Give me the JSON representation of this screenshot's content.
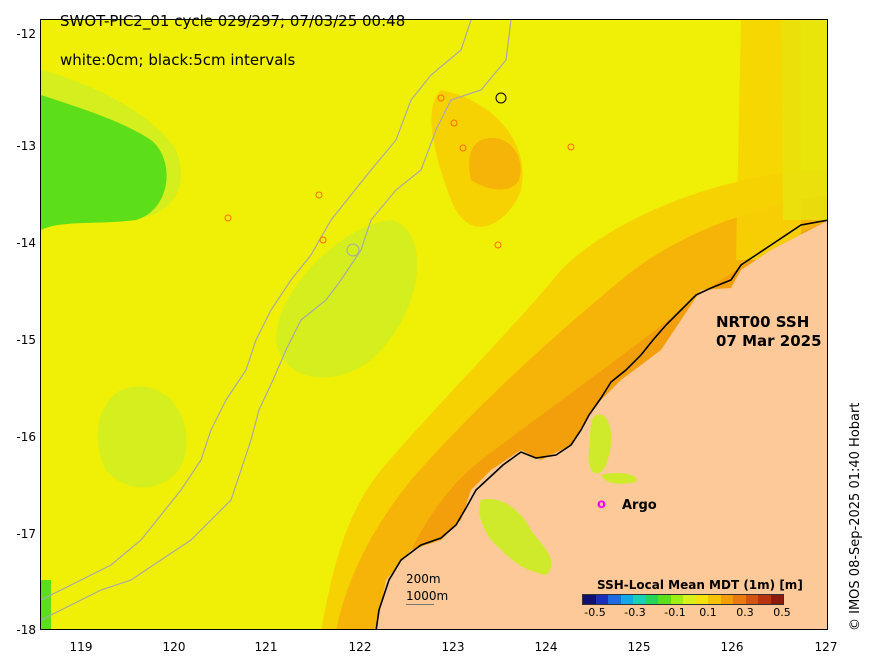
{
  "map": {
    "title_line1": "SWOT-PIC2_01 cycle 029/297; 07/03/25 00:48",
    "title_line2": "white:0cm; black:5cm intervals",
    "product_line1": "NRT00 SSH",
    "product_line2": "07 Mar 2025",
    "argo_marker": "o",
    "argo_label": "Argo",
    "scale_label_1": "200m",
    "scale_label_2": "1000m",
    "credit": "© IMOS 08-Sep-2025 01:40 Hobart",
    "lon_range": [
      118.6,
      127
    ],
    "lat_range": [
      -18,
      -11.75
    ],
    "lat_ticks": [
      "-12",
      "-13",
      "-14",
      "-15",
      "-16",
      "-17",
      "-18"
    ],
    "lon_ticks": [
      "119",
      "120",
      "121",
      "122",
      "123",
      "124",
      "125",
      "126",
      "127"
    ],
    "colors": {
      "land": "#fdc998",
      "ssh_0_05": "#d5ee1d",
      "ssh_0_10": "#f0ef06",
      "ssh_0_15": "#f7d202",
      "ssh_0_20": "#f5b407",
      "ssh_0_25": "#f29f0b",
      "ssh_low": "#7ff21c",
      "ssh_lowest": "#5cdf18",
      "bathymetry": "#a9a9a9",
      "argo": "#ff00ff"
    }
  },
  "colorbar": {
    "title": "SSH-Local Mean MDT (1m) [m]",
    "tick_labels": [
      "-0.5",
      "-0.3",
      "-0.1",
      "0.1",
      "0.3",
      "0.5"
    ],
    "range": [
      -0.5,
      0.5
    ],
    "colors": [
      "#101070",
      "#1c2fb8",
      "#1d6ce0",
      "#15a8e6",
      "#1ad0b4",
      "#26d45a",
      "#5cdf18",
      "#9ef014",
      "#d9f01a",
      "#f5e40a",
      "#f6c204",
      "#f39e09",
      "#ea7a10",
      "#d35412",
      "#b8330f",
      "#8e1a0c"
    ]
  }
}
